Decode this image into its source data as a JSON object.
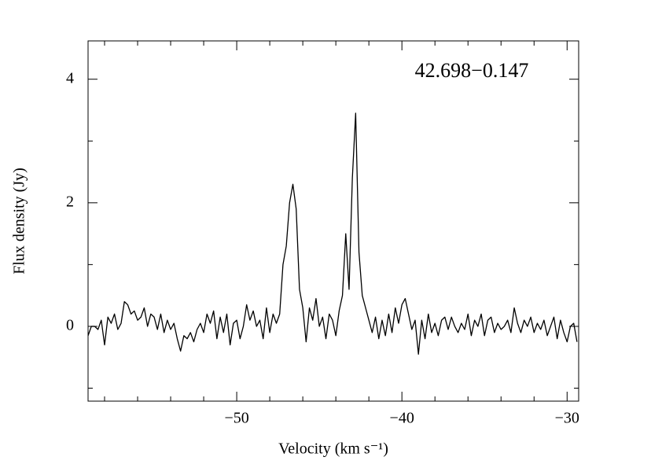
{
  "chart_data": {
    "type": "line",
    "annotation": "42.698−0.147",
    "xlabel": "Velocity (km s⁻¹)",
    "ylabel": "Flux density (Jy)",
    "color": "#000000",
    "xlim": [
      -59,
      -29.3
    ],
    "ylim": [
      -1.21,
      4.62
    ],
    "xticks": [
      {
        "value": -50,
        "label": "−50"
      },
      {
        "value": -40,
        "label": "−40"
      },
      {
        "value": -30,
        "label": "−30"
      }
    ],
    "xminorticks": [
      -58,
      -56,
      -54,
      -52,
      -48,
      -46,
      -44,
      -42,
      -38,
      -36,
      -34,
      -32
    ],
    "yticks": [
      0,
      2,
      4
    ],
    "yminorticks": [
      -1,
      1,
      3
    ],
    "x": [
      -59.0,
      -58.8,
      -58.6,
      -58.4,
      -58.2,
      -58.0,
      -57.8,
      -57.6,
      -57.4,
      -57.2,
      -57.0,
      -56.8,
      -56.6,
      -56.4,
      -56.2,
      -56.0,
      -55.8,
      -55.6,
      -55.4,
      -55.2,
      -55.0,
      -54.8,
      -54.6,
      -54.4,
      -54.2,
      -54.0,
      -53.8,
      -53.6,
      -53.4,
      -53.2,
      -53.0,
      -52.8,
      -52.6,
      -52.4,
      -52.2,
      -52.0,
      -51.8,
      -51.6,
      -51.4,
      -51.2,
      -51.0,
      -50.8,
      -50.6,
      -50.4,
      -50.2,
      -50.0,
      -49.8,
      -49.6,
      -49.4,
      -49.2,
      -49.0,
      -48.8,
      -48.6,
      -48.4,
      -48.2,
      -48.0,
      -47.8,
      -47.6,
      -47.4,
      -47.2,
      -47.0,
      -46.8,
      -46.6,
      -46.4,
      -46.2,
      -46.0,
      -45.8,
      -45.6,
      -45.4,
      -45.2,
      -45.0,
      -44.8,
      -44.6,
      -44.4,
      -44.2,
      -44.0,
      -43.8,
      -43.6,
      -43.4,
      -43.2,
      -43.0,
      -42.8,
      -42.6,
      -42.4,
      -42.2,
      -42.0,
      -41.8,
      -41.6,
      -41.4,
      -41.2,
      -41.0,
      -40.8,
      -40.6,
      -40.4,
      -40.2,
      -40.0,
      -39.8,
      -39.6,
      -39.4,
      -39.2,
      -39.0,
      -38.8,
      -38.6,
      -38.4,
      -38.2,
      -38.0,
      -37.8,
      -37.6,
      -37.4,
      -37.2,
      -37.0,
      -36.8,
      -36.6,
      -36.4,
      -36.2,
      -36.0,
      -35.8,
      -35.6,
      -35.4,
      -35.2,
      -35.0,
      -34.8,
      -34.6,
      -34.4,
      -34.2,
      -34.0,
      -33.8,
      -33.6,
      -33.4,
      -33.2,
      -33.0,
      -32.8,
      -32.6,
      -32.4,
      -32.2,
      -32.0,
      -31.8,
      -31.6,
      -31.4,
      -31.2,
      -31.0,
      -30.8,
      -30.6,
      -30.4,
      -30.2,
      -30.0,
      -29.8,
      -29.6,
      -29.4
    ],
    "values": [
      -0.15,
      0.0,
      0.0,
      -0.05,
      0.1,
      -0.3,
      0.15,
      0.05,
      0.2,
      -0.05,
      0.05,
      0.4,
      0.35,
      0.2,
      0.25,
      0.1,
      0.15,
      0.3,
      0.0,
      0.2,
      0.15,
      -0.05,
      0.2,
      -0.1,
      0.1,
      -0.05,
      0.05,
      -0.2,
      -0.4,
      -0.15,
      -0.2,
      -0.1,
      -0.25,
      -0.05,
      0.05,
      -0.1,
      0.2,
      0.05,
      0.25,
      -0.2,
      0.15,
      -0.1,
      0.2,
      -0.3,
      0.05,
      0.1,
      -0.2,
      0.0,
      0.35,
      0.1,
      0.25,
      0.0,
      0.1,
      -0.2,
      0.3,
      -0.1,
      0.2,
      0.05,
      0.2,
      1.0,
      1.3,
      2.0,
      2.3,
      1.9,
      0.6,
      0.3,
      -0.25,
      0.3,
      0.1,
      0.45,
      0.0,
      0.15,
      -0.2,
      0.2,
      0.1,
      -0.15,
      0.25,
      0.5,
      1.5,
      0.6,
      2.4,
      3.45,
      1.2,
      0.5,
      0.3,
      0.1,
      -0.1,
      0.15,
      -0.2,
      0.1,
      -0.15,
      0.2,
      -0.1,
      0.3,
      0.05,
      0.35,
      0.45,
      0.2,
      -0.05,
      0.1,
      -0.45,
      0.1,
      -0.2,
      0.2,
      -0.1,
      0.05,
      -0.15,
      0.1,
      0.15,
      -0.05,
      0.15,
      0.0,
      -0.1,
      0.05,
      -0.05,
      0.2,
      -0.15,
      0.1,
      0.0,
      0.2,
      -0.15,
      0.1,
      0.15,
      -0.1,
      0.05,
      -0.05,
      0.0,
      0.1,
      -0.1,
      0.3,
      0.05,
      -0.1,
      0.1,
      0.0,
      0.15,
      -0.1,
      0.05,
      -0.05,
      0.1,
      -0.15,
      0.0,
      0.15,
      -0.2,
      0.1,
      -0.1,
      -0.25,
      0.0,
      0.05,
      -0.25
    ]
  }
}
